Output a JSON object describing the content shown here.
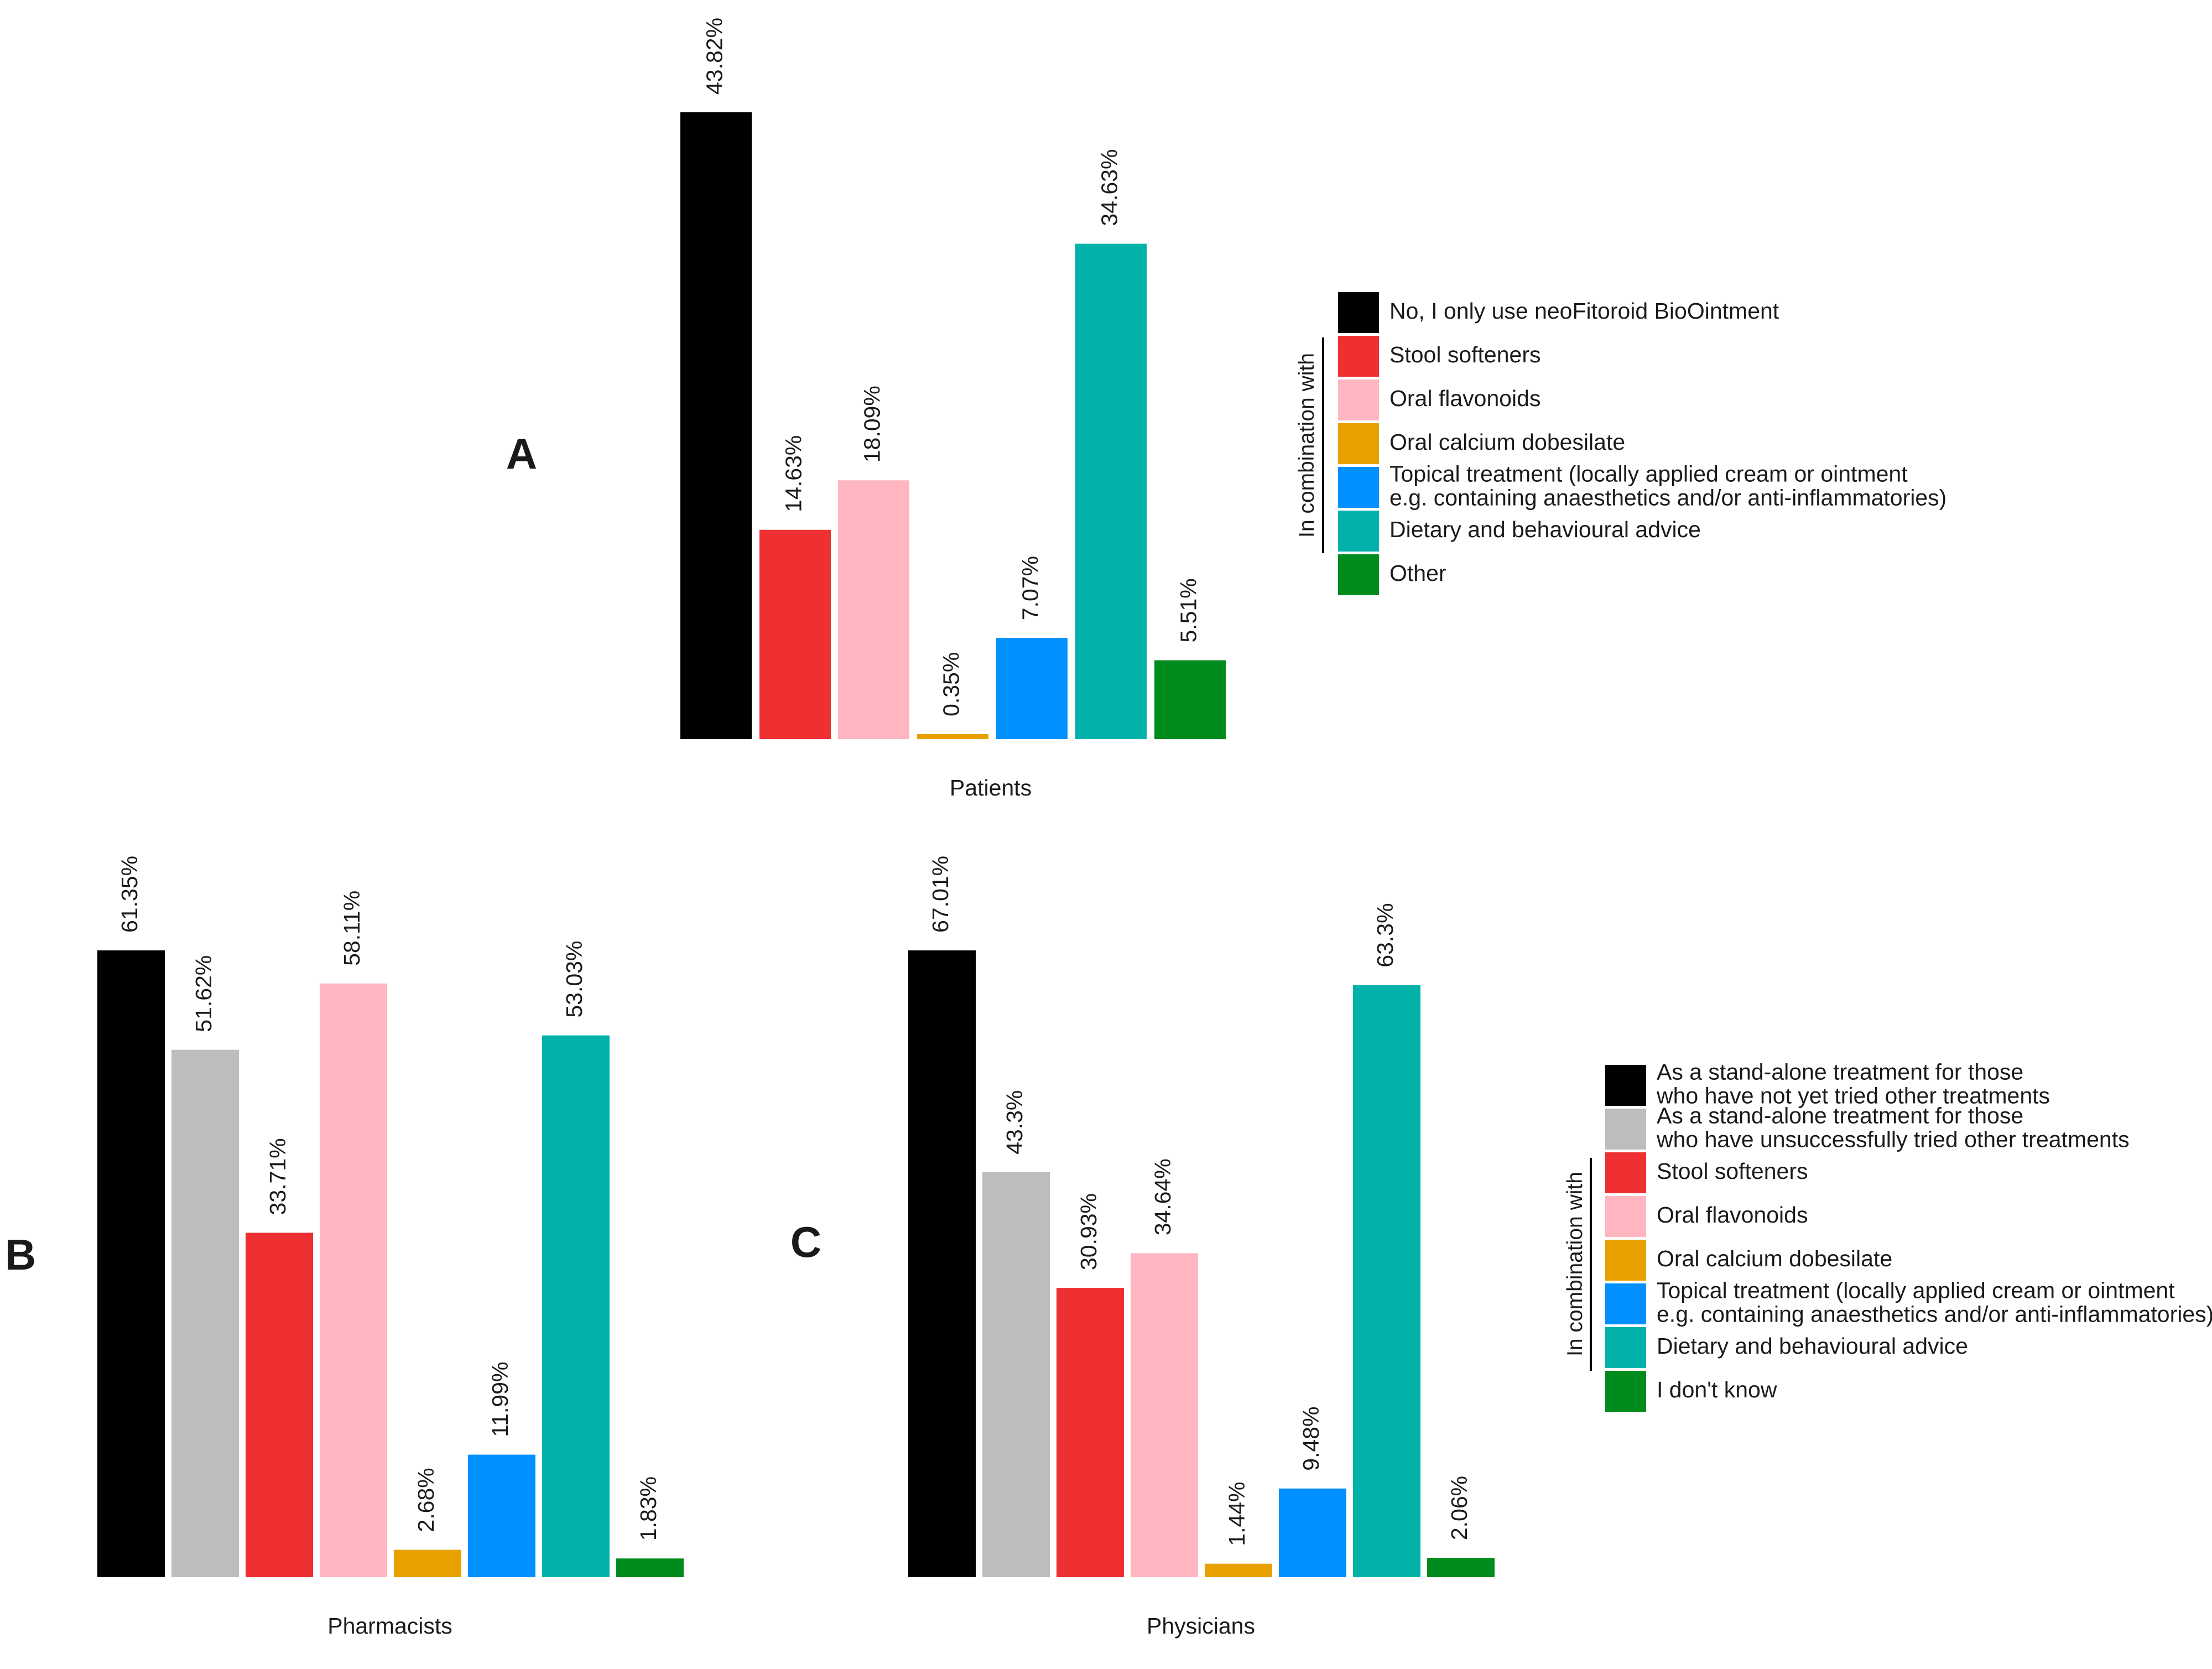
{
  "chart_data": [
    {
      "id": "A",
      "panel_label": "A",
      "type": "bar",
      "xlabel": "Patients",
      "ylabel": "",
      "ylim": [
        0,
        43.82
      ],
      "grid": false,
      "legend": "right",
      "categories": [
        "No, I only use neoFitoroid BioOintment",
        "Stool softeners",
        "Oral flavonoids",
        "Oral calcium dobesilate",
        "Topical treatment (locally applied cream or ointment e.g. containing anaesthetics and/or anti-inflammatories)",
        "Dietary and behavioural advice",
        "Other"
      ],
      "values": [
        43.82,
        14.63,
        18.09,
        0.35,
        7.07,
        34.63,
        5.51
      ],
      "value_labels": [
        "43.82%",
        "14.63%",
        "18.09%",
        "0.35%",
        "7.07%",
        "34.63%",
        "5.51%"
      ],
      "colors": [
        "#000000",
        "#ee3033",
        "#ffb6c1",
        "#e8a200",
        "#0090ff",
        "#00b2aa",
        "#008c1c"
      ]
    },
    {
      "id": "B",
      "panel_label": "B",
      "type": "bar",
      "xlabel": "Pharmacists",
      "ylabel": "",
      "ylim": [
        0,
        61.35
      ],
      "grid": false,
      "legend": "shared, right of panel C",
      "categories": [
        "As a stand-alone treatment for those who have not yet tried other treatments",
        "As a stand-alone treatment for those who have unsuccessfully tried other treatments",
        "Stool softeners",
        "Oral flavonoids",
        "Oral calcium dobesilate",
        "Topical treatment (locally applied cream or ointment e.g. containing anaesthetics and/or anti-inflammatories)",
        "Dietary and behavioural advice",
        "I don't know"
      ],
      "values": [
        61.35,
        51.62,
        33.71,
        58.11,
        2.68,
        11.99,
        53.03,
        1.83
      ],
      "value_labels": [
        "61.35%",
        "51.62%",
        "33.71%",
        "58.11%",
        "2.68%",
        "11.99%",
        "53.03%",
        "1.83%"
      ],
      "colors": [
        "#000000",
        "#bdbdbd",
        "#ee3033",
        "#ffb6c1",
        "#e8a200",
        "#0090ff",
        "#00b2aa",
        "#008c1c"
      ]
    },
    {
      "id": "C",
      "panel_label": "C",
      "type": "bar",
      "xlabel": "Physicians",
      "ylabel": "",
      "ylim": [
        0,
        67.01
      ],
      "grid": false,
      "legend": "right",
      "categories": [
        "As a stand-alone treatment for those who have not yet tried other treatments",
        "As a stand-alone treatment for those who have unsuccessfully tried other treatments",
        "Stool softeners",
        "Oral flavonoids",
        "Oral calcium dobesilate",
        "Topical treatment (locally applied cream or ointment e.g. containing anaesthetics and/or anti-inflammatories)",
        "Dietary and behavioural advice",
        "I don't know"
      ],
      "values": [
        67.01,
        43.3,
        30.93,
        34.64,
        1.44,
        9.48,
        63.3,
        2.06
      ],
      "value_labels": [
        "67.01%",
        "43.3%",
        "30.93%",
        "34.64%",
        "1.44%",
        "9.48%",
        "63.3%",
        "2.06%"
      ],
      "colors": [
        "#000000",
        "#bdbdbd",
        "#ee3033",
        "#ffb6c1",
        "#e8a200",
        "#0090ff",
        "#00b2aa",
        "#008c1c"
      ]
    }
  ],
  "legends": {
    "A": {
      "group_label": "In combination with",
      "entries": [
        {
          "lines": [
            "No, I only use neoFitoroid BioOintment"
          ],
          "color": "#000000"
        },
        {
          "lines": [
            "Stool softeners"
          ],
          "color": "#ee3033"
        },
        {
          "lines": [
            "Oral flavonoids"
          ],
          "color": "#ffb6c1"
        },
        {
          "lines": [
            "Oral calcium dobesilate"
          ],
          "color": "#e8a200"
        },
        {
          "lines": [
            "Topical treatment (locally applied cream or ointment",
            "e.g. containing anaesthetics and/or anti-inflammatories)"
          ],
          "color": "#0090ff"
        },
        {
          "lines": [
            "Dietary and behavioural advice"
          ],
          "color": "#00b2aa"
        },
        {
          "lines": [
            "Other"
          ],
          "color": "#008c1c"
        }
      ]
    },
    "BC": {
      "group_label": "In combination with",
      "entries": [
        {
          "lines": [
            "As a stand-alone treatment for those",
            "who have not yet tried other treatments"
          ],
          "color": "#000000"
        },
        {
          "lines": [
            "As a stand-alone treatment for those",
            "who have unsuccessfully tried other treatments"
          ],
          "color": "#bdbdbd"
        },
        {
          "lines": [
            "Stool softeners"
          ],
          "color": "#ee3033"
        },
        {
          "lines": [
            "Oral flavonoids"
          ],
          "color": "#ffb6c1"
        },
        {
          "lines": [
            "Oral calcium dobesilate"
          ],
          "color": "#e8a200"
        },
        {
          "lines": [
            "Topical treatment (locally applied cream or ointment",
            "e.g. containing anaesthetics and/or anti-inflammatories)"
          ],
          "color": "#0090ff"
        },
        {
          "lines": [
            "Dietary and behavioural advice"
          ],
          "color": "#00b2aa"
        },
        {
          "lines": [
            "I don't know"
          ],
          "color": "#008c1c"
        }
      ]
    }
  }
}
